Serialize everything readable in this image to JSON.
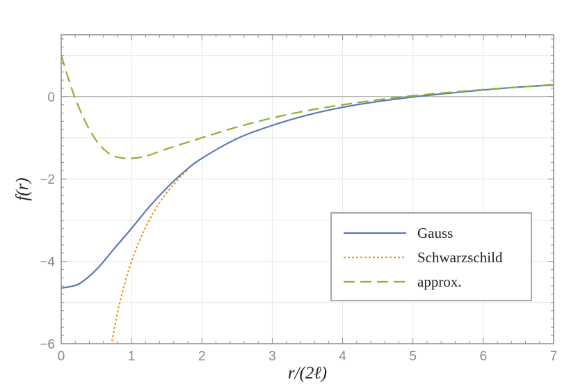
{
  "chart_data": {
    "type": "line",
    "xlabel": "r/(2ℓ)",
    "ylabel": "f(r)",
    "xlim": [
      0,
      7
    ],
    "ylim": [
      -6,
      1.5
    ],
    "xticks": [
      0,
      1,
      2,
      3,
      4,
      5,
      6,
      7
    ],
    "yticks": [
      -6,
      -4,
      -2,
      0
    ],
    "grid": true,
    "legend_position": "bottom-right",
    "series": [
      {
        "name": "Gauss",
        "color": "#5b79b4",
        "style": "solid",
        "x": [
          0,
          0.25,
          0.5,
          0.75,
          1,
          1.25,
          1.5,
          1.75,
          2,
          2.5,
          3,
          3.5,
          4,
          4.5,
          5,
          5.5,
          6,
          6.5,
          7
        ],
        "y": [
          -4.65,
          -4.55,
          -4.2,
          -3.7,
          -3.2,
          -2.68,
          -2.22,
          -1.82,
          -1.5,
          -1.02,
          -0.7,
          -0.45,
          -0.26,
          -0.12,
          -0.01,
          0.08,
          0.16,
          0.23,
          0.28
        ]
      },
      {
        "name": "Schwarzschild",
        "color": "#e69a1e",
        "style": "dotted",
        "x": [
          0.7,
          0.8,
          0.9,
          1,
          1.1,
          1.2,
          1.3,
          1.4,
          1.5,
          1.6,
          1.7,
          1.8
        ],
        "y": [
          -6.14,
          -5.25,
          -4.56,
          -4.0,
          -3.55,
          -3.17,
          -2.85,
          -2.57,
          -2.33,
          -2.13,
          -1.94,
          -1.78
        ]
      },
      {
        "name": "approx.",
        "color": "#8fb030",
        "style": "dashed",
        "x": [
          0,
          0.1,
          0.2,
          0.3,
          0.4,
          0.5,
          0.6,
          0.7,
          0.8,
          0.9,
          1,
          1.2,
          1.5,
          2,
          2.5,
          3,
          3.5,
          4,
          4.5,
          5,
          5.5,
          6,
          6.5,
          7
        ],
        "y": [
          1.0,
          0.45,
          -0.05,
          -0.45,
          -0.8,
          -1.07,
          -1.27,
          -1.4,
          -1.47,
          -1.5,
          -1.5,
          -1.45,
          -1.27,
          -1.0,
          -0.74,
          -0.52,
          -0.34,
          -0.2,
          -0.08,
          0.02,
          0.1,
          0.17,
          0.23,
          0.29
        ]
      }
    ]
  }
}
